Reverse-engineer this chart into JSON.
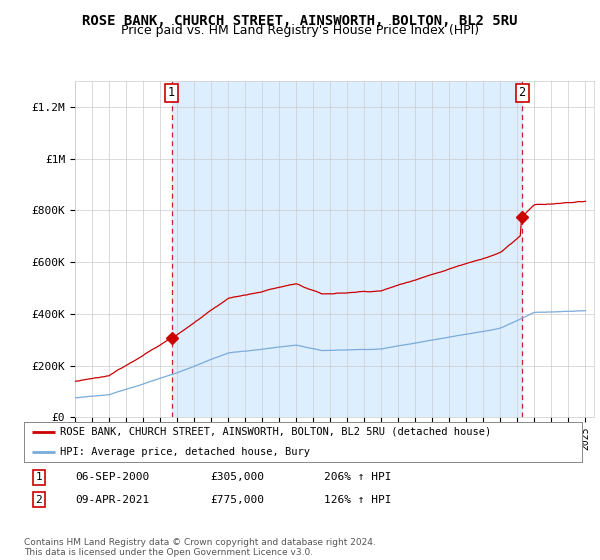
{
  "title": "ROSE BANK, CHURCH STREET, AINSWORTH, BOLTON, BL2 5RU",
  "subtitle": "Price paid vs. HM Land Registry's House Price Index (HPI)",
  "ylim": [
    0,
    1300000
  ],
  "yticks": [
    0,
    200000,
    400000,
    600000,
    800000,
    1000000,
    1200000
  ],
  "ytick_labels": [
    "£0",
    "£200K",
    "£400K",
    "£600K",
    "£800K",
    "£1M",
    "£1.2M"
  ],
  "xlim_start": 1995.0,
  "xlim_end": 2025.5,
  "sale1_date_x": 2000.68,
  "sale1_price": 305000,
  "sale2_date_x": 2021.27,
  "sale2_price": 775000,
  "property_color": "#cc0000",
  "hpi_color": "#7aabdb",
  "shade_color": "#ddeeff",
  "legend_property_label": "ROSE BANK, CHURCH STREET, AINSWORTH, BOLTON, BL2 5RU (detached house)",
  "legend_hpi_label": "HPI: Average price, detached house, Bury",
  "footer": "Contains HM Land Registry data © Crown copyright and database right 2024.\nThis data is licensed under the Open Government Licence v3.0.",
  "bg_color": "#ffffff",
  "grid_color": "#cccccc",
  "title_fontsize": 10,
  "subtitle_fontsize": 9
}
